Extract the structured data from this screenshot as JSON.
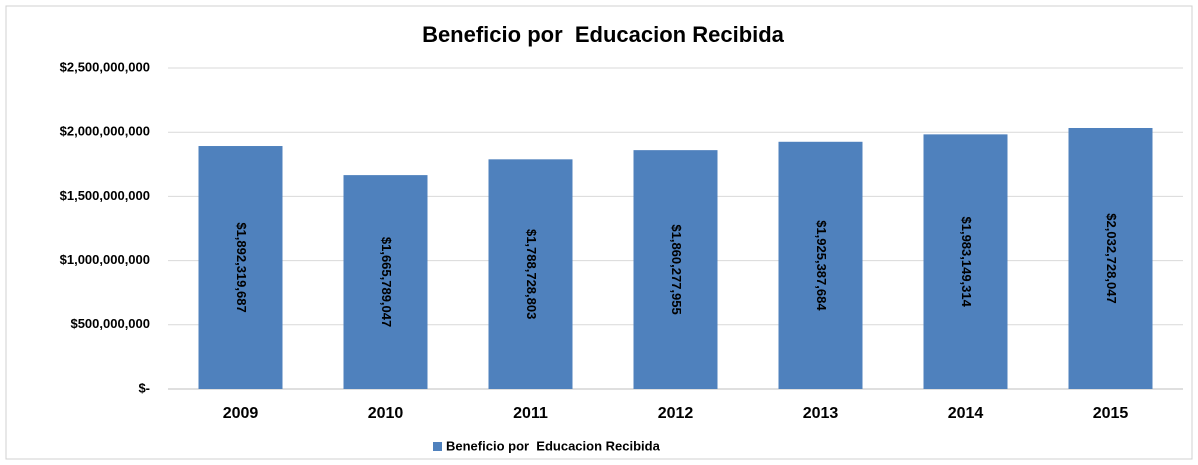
{
  "chart_data": {
    "type": "bar",
    "title": "Beneficio por  Educacion Recibida",
    "categories": [
      "2009",
      "2010",
      "2011",
      "2012",
      "2013",
      "2014",
      "2015"
    ],
    "series": [
      {
        "name": "Beneficio por  Educacion Recibida",
        "color": "#4f81bd",
        "values": [
          1892319687,
          1665789047,
          1788728803,
          1860277955,
          1925387684,
          1983149314,
          2032728047
        ],
        "value_labels": [
          "$1,892,319,687",
          "$1,665,789,047",
          "$1,788,728,803",
          "$1,860,277,955",
          "$1,925,387,684",
          "$1,983,149,314",
          "$2,032,728,047"
        ]
      }
    ],
    "ylim": [
      0,
      2500000000
    ],
    "yticks": [
      {
        "value": 0,
        "label": "$-"
      },
      {
        "value": 500000000,
        "label": "$500,000,000"
      },
      {
        "value": 1000000000,
        "label": "$1,000,000,000"
      },
      {
        "value": 1500000000,
        "label": "$1,500,000,000"
      },
      {
        "value": 2000000000,
        "label": "$2,000,000,000"
      },
      {
        "value": 2500000000,
        "label": "$2,500,000,000"
      }
    ],
    "grid": true,
    "legend": "bottom"
  }
}
